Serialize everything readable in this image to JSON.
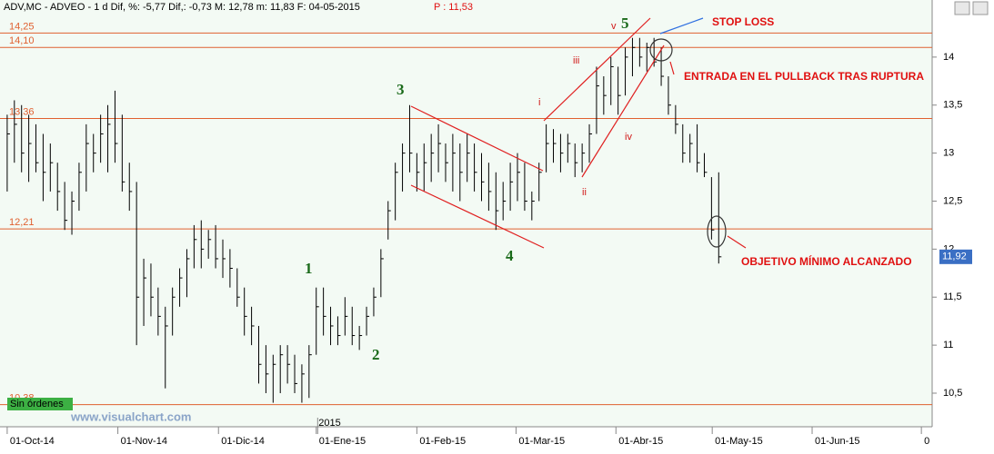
{
  "chart_data": {
    "type": "ohlc",
    "header": "ADV,MC - ADVEO -  1 d Dif, %: -5,77 Dif,: -0,73 M: 12,78 m: 11,83 F: 04-05-2015",
    "header_price": "P : 11,53",
    "high": [
      13.4,
      13.55,
      13.5,
      13.4,
      13.3,
      13.2,
      13.1,
      12.9,
      12.7,
      12.6,
      12.9,
      13.3,
      13.2,
      13.4,
      13.5,
      13.65,
      13.4,
      12.9,
      12.7,
      11.9,
      11.85,
      11.6,
      11.4,
      11.6,
      11.8,
      12.0,
      12.25,
      12.3,
      12.2,
      12.25,
      12.1,
      12.0,
      11.8,
      11.6,
      11.4,
      11.2,
      11.0,
      10.9,
      11.0,
      11.0,
      10.9,
      10.8,
      11.0,
      11.6,
      11.6,
      11.4,
      11.3,
      11.5,
      11.4,
      11.2,
      11.4,
      11.6,
      12.0,
      12.5,
      12.9,
      13.1,
      13.5,
      13.0,
      13.1,
      13.2,
      13.3,
      13.1,
      13.2,
      13.1,
      13.2,
      13.1,
      13.0,
      12.9,
      12.8,
      12.7,
      12.9,
      13.0,
      12.9,
      12.6,
      12.9,
      13.3,
      13.25,
      13.2,
      13.2,
      13.1,
      13.1,
      13.3,
      13.9,
      13.8,
      14.0,
      13.9,
      14.1,
      14.2,
      14.2,
      14.15,
      14.2,
      14.1,
      13.8,
      13.5,
      13.3,
      13.2,
      13.3,
      13.0,
      12.75,
      12.8
    ],
    "low": [
      12.6,
      12.9,
      12.8,
      12.7,
      12.8,
      12.5,
      12.6,
      12.4,
      12.2,
      12.15,
      12.4,
      12.6,
      12.8,
      12.9,
      12.8,
      12.9,
      12.6,
      12.4,
      11.0,
      11.2,
      11.3,
      11.1,
      10.55,
      11.1,
      11.4,
      11.5,
      11.8,
      11.8,
      11.9,
      11.8,
      11.7,
      11.6,
      11.4,
      11.1,
      11.0,
      10.6,
      10.5,
      10.4,
      10.5,
      10.6,
      10.5,
      10.4,
      10.45,
      10.9,
      11.1,
      11.0,
      11.0,
      11.1,
      11.0,
      10.95,
      11.1,
      11.3,
      11.5,
      12.1,
      12.3,
      12.6,
      12.8,
      12.6,
      12.6,
      12.7,
      12.8,
      12.7,
      12.6,
      12.5,
      12.7,
      12.6,
      12.5,
      12.4,
      12.2,
      12.3,
      12.4,
      12.5,
      12.4,
      12.3,
      12.5,
      12.8,
      12.9,
      12.8,
      12.9,
      12.75,
      12.8,
      12.9,
      13.2,
      13.4,
      13.5,
      13.4,
      13.6,
      13.8,
      13.9,
      13.85,
      13.9,
      13.7,
      13.4,
      13.2,
      12.9,
      12.9,
      12.8,
      12.75,
      12.1,
      11.85
    ],
    "close": [
      13.2,
      13.3,
      13.0,
      13.1,
      12.9,
      12.8,
      12.9,
      12.6,
      12.3,
      12.5,
      12.8,
      13.1,
      13.0,
      13.2,
      13.3,
      13.1,
      12.7,
      12.6,
      11.5,
      11.7,
      11.5,
      11.3,
      11.2,
      11.5,
      11.7,
      11.9,
      12.1,
      12.0,
      12.1,
      11.9,
      11.9,
      11.8,
      11.5,
      11.3,
      11.2,
      10.8,
      10.7,
      10.8,
      10.9,
      10.8,
      10.6,
      10.7,
      10.9,
      11.4,
      11.3,
      11.2,
      11.1,
      11.3,
      11.1,
      11.1,
      11.3,
      11.5,
      11.9,
      12.4,
      12.8,
      13.0,
      13.0,
      12.8,
      12.9,
      13.0,
      13.1,
      12.9,
      13.0,
      12.8,
      13.0,
      12.8,
      12.7,
      12.6,
      12.4,
      12.5,
      12.7,
      12.8,
      12.5,
      12.5,
      12.8,
      13.1,
      13.1,
      13.0,
      13.1,
      12.9,
      13.0,
      13.2,
      13.7,
      13.6,
      13.9,
      13.6,
      14.0,
      14.1,
      14.0,
      14.1,
      13.95,
      13.8,
      13.5,
      13.3,
      13.0,
      13.1,
      12.9,
      12.8,
      12.2,
      11.92
    ],
    "color": "#000000",
    "xlim": [
      -1,
      128.7
    ],
    "xticks": [
      {
        "value": 0,
        "label": "01-Oct-14"
      },
      {
        "value": 15.4,
        "label": "01-Nov-14"
      },
      {
        "value": 29.4,
        "label": "01-Dic-14"
      },
      {
        "value": 43,
        "label": "01-Ene-15"
      },
      {
        "value": 57,
        "label": "01-Feb-15"
      },
      {
        "value": 70.8,
        "label": "01-Mar-15"
      },
      {
        "value": 84.7,
        "label": "01-Abr-15"
      },
      {
        "value": 98.1,
        "label": "01-May-15"
      },
      {
        "value": 112,
        "label": "01-Jun-15"
      },
      {
        "value": 127.2,
        "label": "0"
      }
    ],
    "year_label": {
      "value": 43.2,
      "label": "2015"
    },
    "ylim": [
      10.15,
      14.5
    ],
    "yticks": [
      {
        "value": 10.5,
        "label": "10,5"
      },
      11,
      {
        "value": 11.5,
        "label": "11,5"
      },
      12,
      {
        "value": 12.5,
        "label": "12,5"
      },
      13,
      {
        "value": 13.5,
        "label": "13,5"
      },
      14
    ],
    "levels": [
      {
        "value": 14.25,
        "label": "14,25"
      },
      {
        "value": 14.1,
        "label": "14,10"
      },
      {
        "value": 13.36,
        "label": "13,36"
      },
      {
        "value": 12.21,
        "label": "12,21"
      },
      {
        "value": 10.38,
        "label": "10,38"
      }
    ],
    "level_color": "#e06030",
    "last_price": {
      "value": 11.92,
      "label": "11,92"
    },
    "annotations": {
      "stop": "STOP LOSS",
      "entry": "ENTRADA EN EL PULLBACK TRAS RUPTURA",
      "target": "OBJETIVO MÍNIMO ALCANZADO",
      "w1": "1",
      "w2": "2",
      "w3": "3",
      "w4": "4",
      "w5": "5",
      "si": "i",
      "sii": "ii",
      "siii": "iii",
      "siv": "iv",
      "sv": "v"
    },
    "orders": "Sin órdenes",
    "watermark": "www.visualchart.com"
  }
}
